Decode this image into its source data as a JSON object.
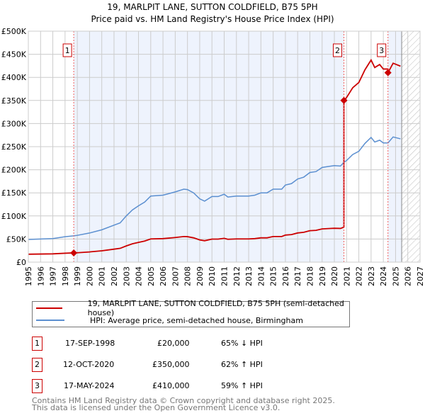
{
  "title": "19, MARLPIT LANE, SUTTON COLDFIELD, B75 5PH",
  "subtitle": "Price paid vs. HM Land Registry's House Price Index (HPI)",
  "chart_data": {
    "type": "line",
    "title": "19, MARLPIT LANE, SUTTON COLDFIELD, B75 5PH",
    "subtitle": "Price paid vs. HM Land Registry's House Price Index (HPI)",
    "xlim": [
      1995,
      2027
    ],
    "ylim": [
      0,
      500000
    ],
    "yticks": [
      {
        "v": 0,
        "label": "£0"
      },
      {
        "v": 50000,
        "label": "£50K"
      },
      {
        "v": 100000,
        "label": "£100K"
      },
      {
        "v": 150000,
        "label": "£150K"
      },
      {
        "v": 200000,
        "label": "£200K"
      },
      {
        "v": 250000,
        "label": "£250K"
      },
      {
        "v": 300000,
        "label": "£300K"
      },
      {
        "v": 350000,
        "label": "£350K"
      },
      {
        "v": 400000,
        "label": "£400K"
      },
      {
        "v": 450000,
        "label": "£450K"
      },
      {
        "v": 500000,
        "label": "£500K"
      }
    ],
    "xticks": [
      "1995",
      "1996",
      "1997",
      "1998",
      "1999",
      "2000",
      "2001",
      "2002",
      "2003",
      "2004",
      "2005",
      "2006",
      "2007",
      "2008",
      "2009",
      "2010",
      "2011",
      "2012",
      "2013",
      "2014",
      "2015",
      "2016",
      "2017",
      "2018",
      "2019",
      "2020",
      "2021",
      "2022",
      "2023",
      "2024",
      "2025",
      "2026",
      "2027"
    ],
    "grid": true,
    "forecast_from": 2025.5,
    "colors": {
      "property": "#cc0000",
      "hpi": "#5b8fd0",
      "shade": "#eef3fd"
    },
    "hpi": {
      "name": "HPI: Average price, semi-detached house, Birmingham",
      "x": [
        1995,
        1996,
        1997,
        1998,
        1998.71,
        1999,
        2000,
        2001,
        2002,
        2002.5,
        2003,
        2003.5,
        2004,
        2004.5,
        2005,
        2006,
        2007,
        2007.7,
        2008,
        2008.5,
        2009,
        2009.4,
        2010,
        2010.5,
        2011,
        2011.3,
        2012,
        2013,
        2013.5,
        2014,
        2014.5,
        2015,
        2015.7,
        2016,
        2016.5,
        2017,
        2017.5,
        2018,
        2018.5,
        2019,
        2019.5,
        2020,
        2020.5,
        2020.78,
        2021,
        2021.5,
        2022,
        2022.5,
        2023,
        2023.3,
        2023.7,
        2024,
        2024.38,
        2024.8,
        2025.4
      ],
      "y": [
        49000,
        50000,
        51000,
        55000,
        57000,
        58000,
        63000,
        70000,
        80000,
        85000,
        100000,
        113000,
        122000,
        130000,
        143000,
        145000,
        152000,
        158000,
        157000,
        150000,
        137000,
        132000,
        142000,
        142000,
        147000,
        141000,
        143000,
        143000,
        145000,
        150000,
        150000,
        158000,
        158000,
        167000,
        170000,
        180000,
        184000,
        194000,
        196000,
        205000,
        207000,
        209000,
        208000,
        216000,
        220000,
        233000,
        240000,
        257000,
        270000,
        260000,
        264000,
        258000,
        258000,
        271000,
        267000
      ]
    },
    "property_name": "19, MARLPIT LANE, SUTTON COLDFIELD, B75 5PH (semi-detached house)",
    "sales": [
      {
        "n": "1",
        "x": 1998.71,
        "date": "17-SEP-1998",
        "price_value": 20000,
        "price": "£20,000",
        "hpi": "65% ↓ HPI"
      },
      {
        "n": "2",
        "x": 2020.78,
        "date": "12-OCT-2020",
        "price_value": 350000,
        "price": "£350,000",
        "hpi": "62% ↑ HPI"
      },
      {
        "n": "3",
        "x": 2024.38,
        "date": "17-MAY-2024",
        "price_value": 410000,
        "price": "£410,000",
        "hpi": "59% ↑ HPI"
      }
    ]
  },
  "footer": [
    "Contains HM Land Registry data © Crown copyright and database right 2025.",
    "This data is licensed under the Open Government Licence v3.0."
  ]
}
